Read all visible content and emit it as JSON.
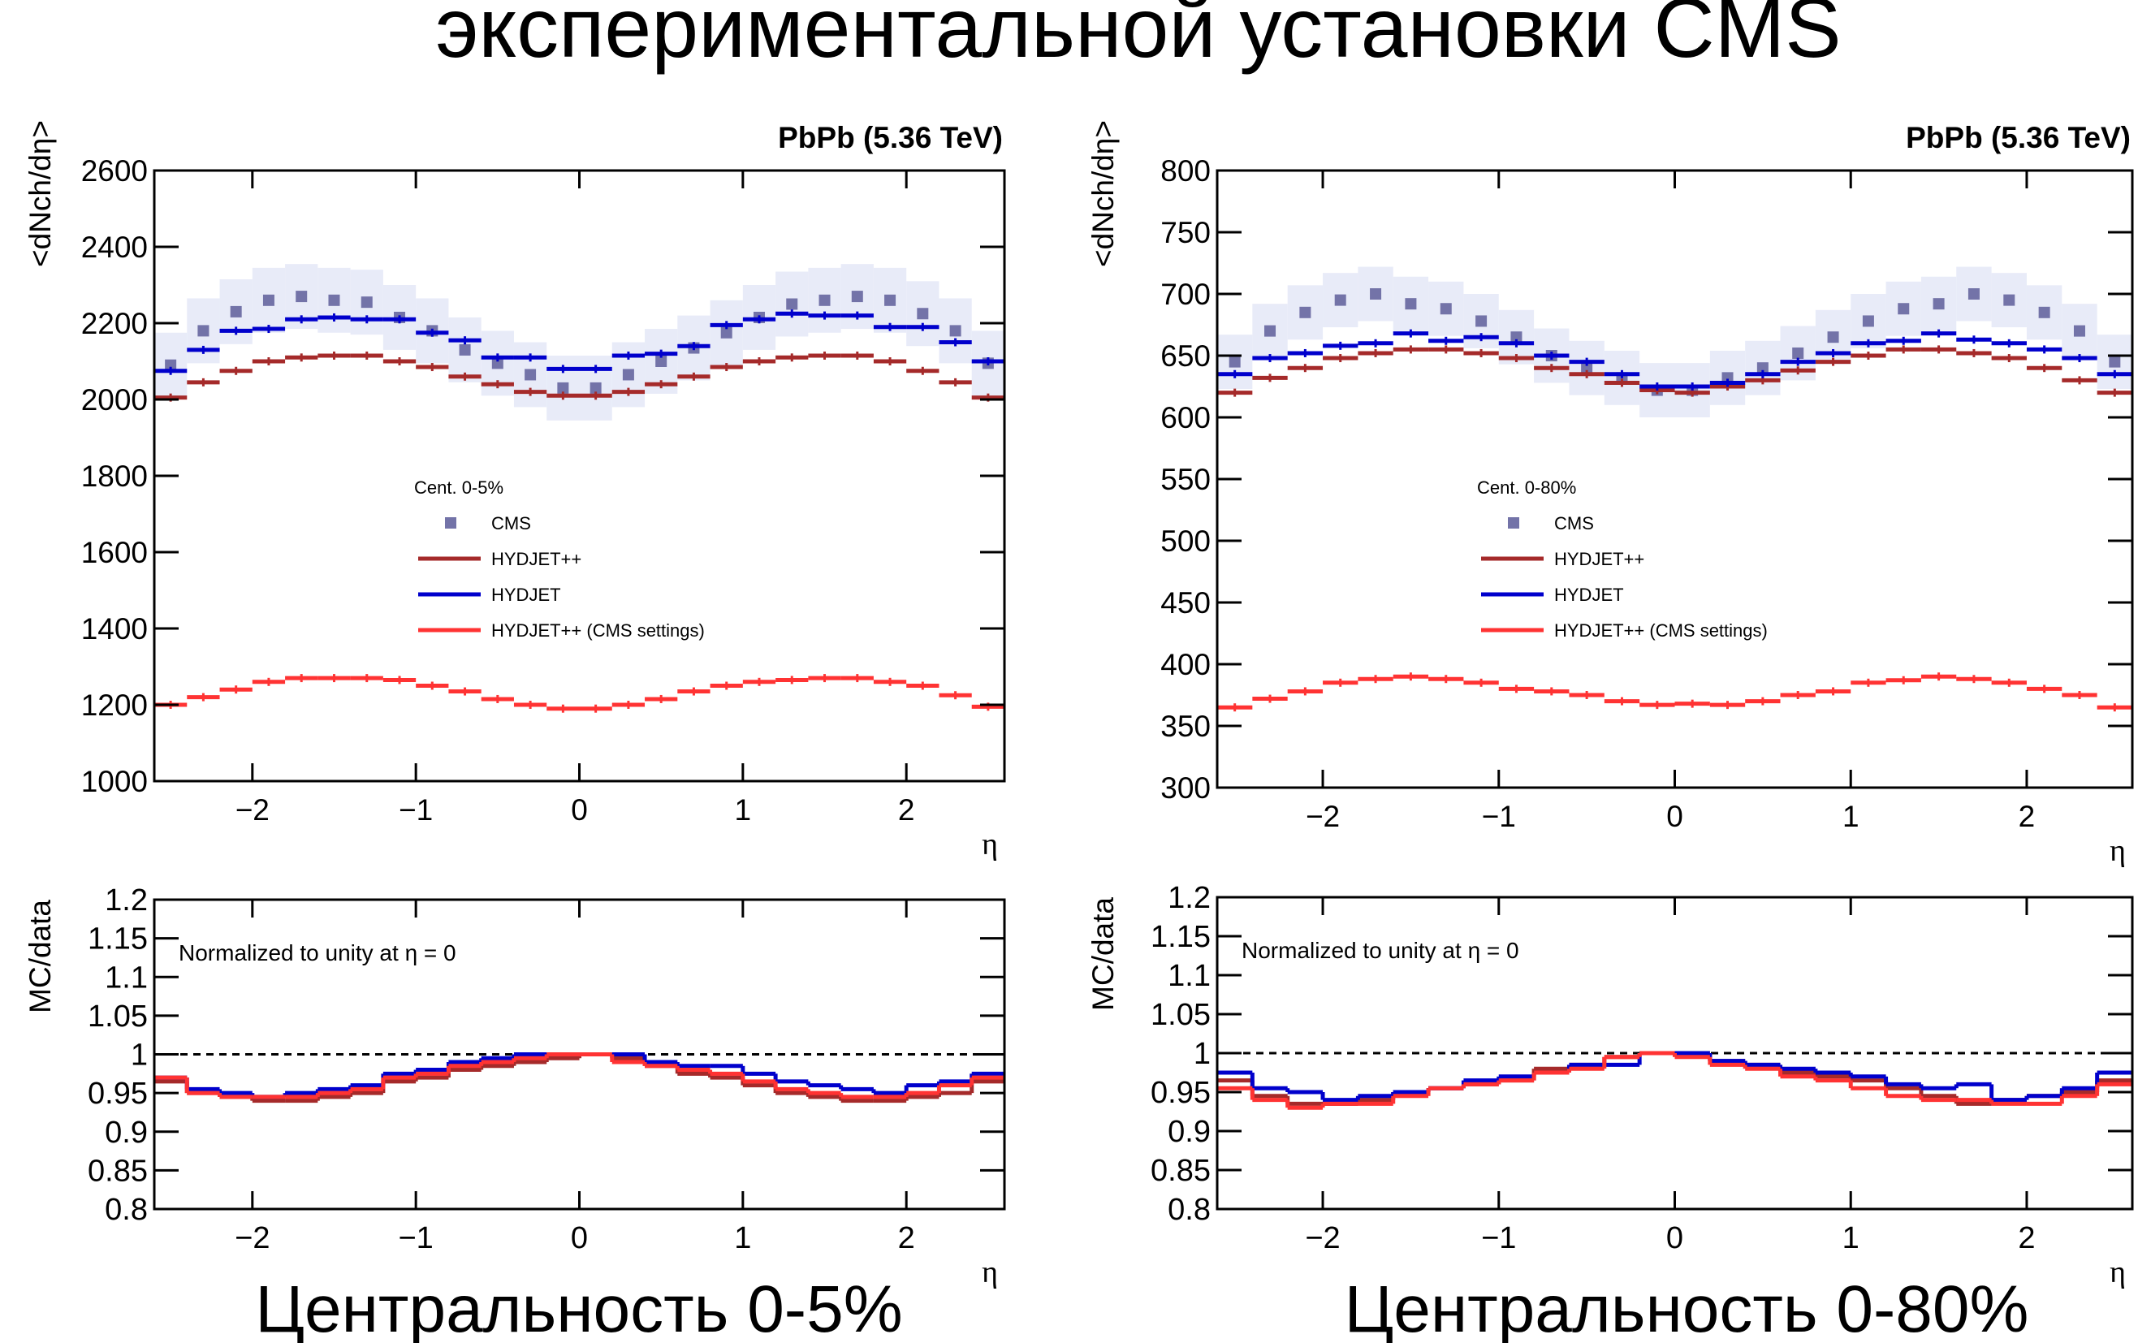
{
  "title": "экспериментальной установки CMS",
  "captions": [
    "Центральность 0-5%",
    "Центральность 0-80%"
  ],
  "chart_data": [
    {
      "type": "histogram",
      "connected": false,
      "title": "PbPb (5.36 TeV)",
      "ylabel": "<dNch/dη>",
      "xlabel": "η",
      "legend_title": "Cent. 0-5%",
      "legend": "center",
      "bins": [
        -2.6,
        -2.4,
        -2.2,
        -2,
        -1.8,
        -1.6,
        -1.4,
        -1.2,
        -1,
        -0.8,
        -0.6,
        -0.4,
        -0.2,
        0,
        0.2,
        0.4,
        0.6,
        0.8,
        1,
        1.2,
        1.4,
        1.6,
        1.8,
        2,
        2.2,
        2.4,
        2.6
      ],
      "xlim": [
        -2.6,
        2.6
      ],
      "xticks": [
        {
          "value": -2,
          "label": "−2"
        },
        {
          "value": -1,
          "label": "−1"
        },
        0,
        1,
        2
      ],
      "ylim": [
        1000,
        2600
      ],
      "yticks": [
        1000,
        1200,
        1400,
        1600,
        1800,
        2000,
        2200,
        2400,
        2600
      ],
      "series": [
        {
          "name": "CMS",
          "color": "#7373a8",
          "marker": "square",
          "error": 85,
          "band_color": "#e8ebf8",
          "values": [
            2090,
            2180,
            2230,
            2260,
            2270,
            2260,
            2255,
            2215,
            2180,
            2130,
            2095,
            2065,
            2030,
            2030,
            2065,
            2100,
            2135,
            2175,
            2215,
            2250,
            2260,
            2270,
            2260,
            2225,
            2180,
            2095
          ]
        },
        {
          "name": "HYDJET++",
          "color": "#a52a2a",
          "values": [
            2005,
            2045,
            2075,
            2100,
            2110,
            2115,
            2115,
            2100,
            2085,
            2060,
            2040,
            2020,
            2010,
            2010,
            2020,
            2040,
            2060,
            2085,
            2100,
            2110,
            2115,
            2115,
            2100,
            2075,
            2045,
            2005
          ]
        },
        {
          "name": "HYDJET",
          "color": "#0000cc",
          "values": [
            2075,
            2130,
            2180,
            2185,
            2210,
            2215,
            2210,
            2210,
            2175,
            2155,
            2110,
            2110,
            2080,
            2080,
            2115,
            2120,
            2140,
            2195,
            2210,
            2225,
            2220,
            2220,
            2190,
            2190,
            2150,
            2100
          ]
        },
        {
          "name": "HYDJET++ (CMS settings)",
          "color": "#ff3333",
          "values": [
            1200,
            1220,
            1240,
            1260,
            1270,
            1270,
            1270,
            1265,
            1250,
            1235,
            1215,
            1200,
            1190,
            1190,
            1200,
            1215,
            1235,
            1250,
            1260,
            1265,
            1270,
            1270,
            1260,
            1250,
            1225,
            1195
          ]
        }
      ]
    },
    {
      "type": "histogram",
      "connected": true,
      "ylabel": "MC/data",
      "xlabel": "η",
      "annotation": "Normalized to unity at η = 0",
      "reference_line": 1,
      "bins": [
        -2.6,
        -2.4,
        -2.2,
        -2,
        -1.8,
        -1.6,
        -1.4,
        -1.2,
        -1,
        -0.8,
        -0.6,
        -0.4,
        -0.2,
        0,
        0.2,
        0.4,
        0.6,
        0.8,
        1,
        1.2,
        1.4,
        1.6,
        1.8,
        2,
        2.2,
        2.4,
        2.6
      ],
      "xlim": [
        -2.6,
        2.6
      ],
      "xticks": [
        {
          "value": -2,
          "label": "−2"
        },
        {
          "value": -1,
          "label": "−1"
        },
        0,
        1,
        2
      ],
      "ylim": [
        0.8,
        1.2
      ],
      "yticks": [
        0.8,
        0.85,
        0.9,
        0.95,
        1,
        1.05,
        1.1,
        1.15,
        1.2
      ],
      "series": [
        {
          "color": "#a52a2a",
          "values": [
            0.965,
            0.95,
            0.945,
            0.94,
            0.94,
            0.945,
            0.95,
            0.965,
            0.97,
            0.98,
            0.985,
            0.99,
            0.995,
            1,
            0.995,
            0.985,
            0.975,
            0.97,
            0.96,
            0.95,
            0.945,
            0.94,
            0.94,
            0.945,
            0.95,
            0.965
          ]
        },
        {
          "color": "#0000cc",
          "values": [
            0.97,
            0.955,
            0.95,
            0.945,
            0.95,
            0.955,
            0.96,
            0.975,
            0.98,
            0.99,
            0.995,
            1,
            1,
            1,
            1,
            0.99,
            0.985,
            0.985,
            0.975,
            0.965,
            0.96,
            0.955,
            0.95,
            0.96,
            0.965,
            0.975
          ]
        },
        {
          "color": "#ff3333",
          "values": [
            0.97,
            0.95,
            0.945,
            0.945,
            0.945,
            0.95,
            0.955,
            0.97,
            0.975,
            0.985,
            0.99,
            0.995,
            1,
            1,
            0.99,
            0.985,
            0.98,
            0.975,
            0.965,
            0.955,
            0.95,
            0.945,
            0.945,
            0.95,
            0.96,
            0.97
          ]
        }
      ]
    },
    {
      "type": "histogram",
      "connected": false,
      "title": "PbPb (5.36 TeV)",
      "ylabel": "<dNch/dη>",
      "xlabel": "η",
      "legend_title": "Cent. 0-80%",
      "legend": "center",
      "bins": [
        -2.6,
        -2.4,
        -2.2,
        -2,
        -1.8,
        -1.6,
        -1.4,
        -1.2,
        -1,
        -0.8,
        -0.6,
        -0.4,
        -0.2,
        0,
        0.2,
        0.4,
        0.6,
        0.8,
        1,
        1.2,
        1.4,
        1.6,
        1.8,
        2,
        2.2,
        2.4,
        2.6
      ],
      "xlim": [
        -2.6,
        2.6
      ],
      "xticks": [
        {
          "value": -2,
          "label": "−2"
        },
        {
          "value": -1,
          "label": "−1"
        },
        0,
        1,
        2
      ],
      "ylim": [
        300,
        800
      ],
      "yticks": [
        300,
        350,
        400,
        450,
        500,
        550,
        600,
        650,
        700,
        750,
        800
      ],
      "series": [
        {
          "name": "CMS",
          "color": "#7373a8",
          "marker": "square",
          "error": 22,
          "band_color": "#e8ebf8",
          "values": [
            645,
            670,
            685,
            695,
            700,
            692,
            688,
            678,
            665,
            650,
            640,
            632,
            622,
            622,
            632,
            640,
            652,
            665,
            678,
            688,
            692,
            700,
            695,
            685,
            670,
            645
          ]
        },
        {
          "name": "HYDJET++",
          "color": "#a52a2a",
          "values": [
            620,
            632,
            640,
            648,
            652,
            655,
            655,
            652,
            648,
            640,
            635,
            628,
            622,
            620,
            625,
            630,
            638,
            645,
            650,
            655,
            655,
            652,
            648,
            640,
            630,
            620
          ]
        },
        {
          "name": "HYDJET",
          "color": "#0000cc",
          "values": [
            635,
            648,
            652,
            658,
            660,
            668,
            662,
            665,
            660,
            650,
            645,
            635,
            625,
            625,
            628,
            635,
            645,
            652,
            660,
            662,
            668,
            663,
            660,
            655,
            648,
            635
          ]
        },
        {
          "name": "HYDJET++ (CMS settings)",
          "color": "#ff3333",
          "values": [
            365,
            372,
            378,
            385,
            388,
            390,
            388,
            385,
            380,
            378,
            375,
            370,
            367,
            368,
            367,
            370,
            375,
            378,
            385,
            387,
            390,
            388,
            385,
            380,
            375,
            365
          ]
        }
      ]
    },
    {
      "type": "histogram",
      "connected": true,
      "ylabel": "MC/data",
      "xlabel": "η",
      "annotation": "Normalized to unity at η = 0",
      "reference_line": 1,
      "bins": [
        -2.6,
        -2.4,
        -2.2,
        -2,
        -1.8,
        -1.6,
        -1.4,
        -1.2,
        -1,
        -0.8,
        -0.6,
        -0.4,
        -0.2,
        0,
        0.2,
        0.4,
        0.6,
        0.8,
        1,
        1.2,
        1.4,
        1.6,
        1.8,
        2,
        2.2,
        2.4,
        2.6
      ],
      "xlim": [
        -2.6,
        2.6
      ],
      "xticks": [
        {
          "value": -2,
          "label": "−2"
        },
        {
          "value": -1,
          "label": "−1"
        },
        0,
        1,
        2
      ],
      "ylim": [
        0.8,
        1.2
      ],
      "yticks": [
        0.8,
        0.85,
        0.9,
        0.95,
        1,
        1.05,
        1.1,
        1.15,
        1.2
      ],
      "series": [
        {
          "color": "#a52a2a",
          "values": [
            0.965,
            0.945,
            0.935,
            0.935,
            0.94,
            0.95,
            0.955,
            0.96,
            0.965,
            0.98,
            0.985,
            0.995,
            1,
            1,
            0.99,
            0.985,
            0.975,
            0.97,
            0.965,
            0.955,
            0.945,
            0.935,
            0.94,
            0.945,
            0.95,
            0.965
          ]
        },
        {
          "color": "#0000cc",
          "values": [
            0.975,
            0.955,
            0.95,
            0.94,
            0.945,
            0.95,
            0.955,
            0.965,
            0.97,
            0.975,
            0.985,
            0.985,
            1,
            1,
            0.99,
            0.985,
            0.98,
            0.975,
            0.97,
            0.96,
            0.955,
            0.96,
            0.94,
            0.945,
            0.955,
            0.975
          ]
        },
        {
          "color": "#ff3333",
          "values": [
            0.955,
            0.94,
            0.93,
            0.935,
            0.935,
            0.945,
            0.955,
            0.96,
            0.965,
            0.975,
            0.98,
            0.995,
            1,
            0.995,
            0.985,
            0.98,
            0.97,
            0.965,
            0.955,
            0.945,
            0.94,
            0.94,
            0.935,
            0.935,
            0.945,
            0.96
          ]
        }
      ]
    }
  ]
}
